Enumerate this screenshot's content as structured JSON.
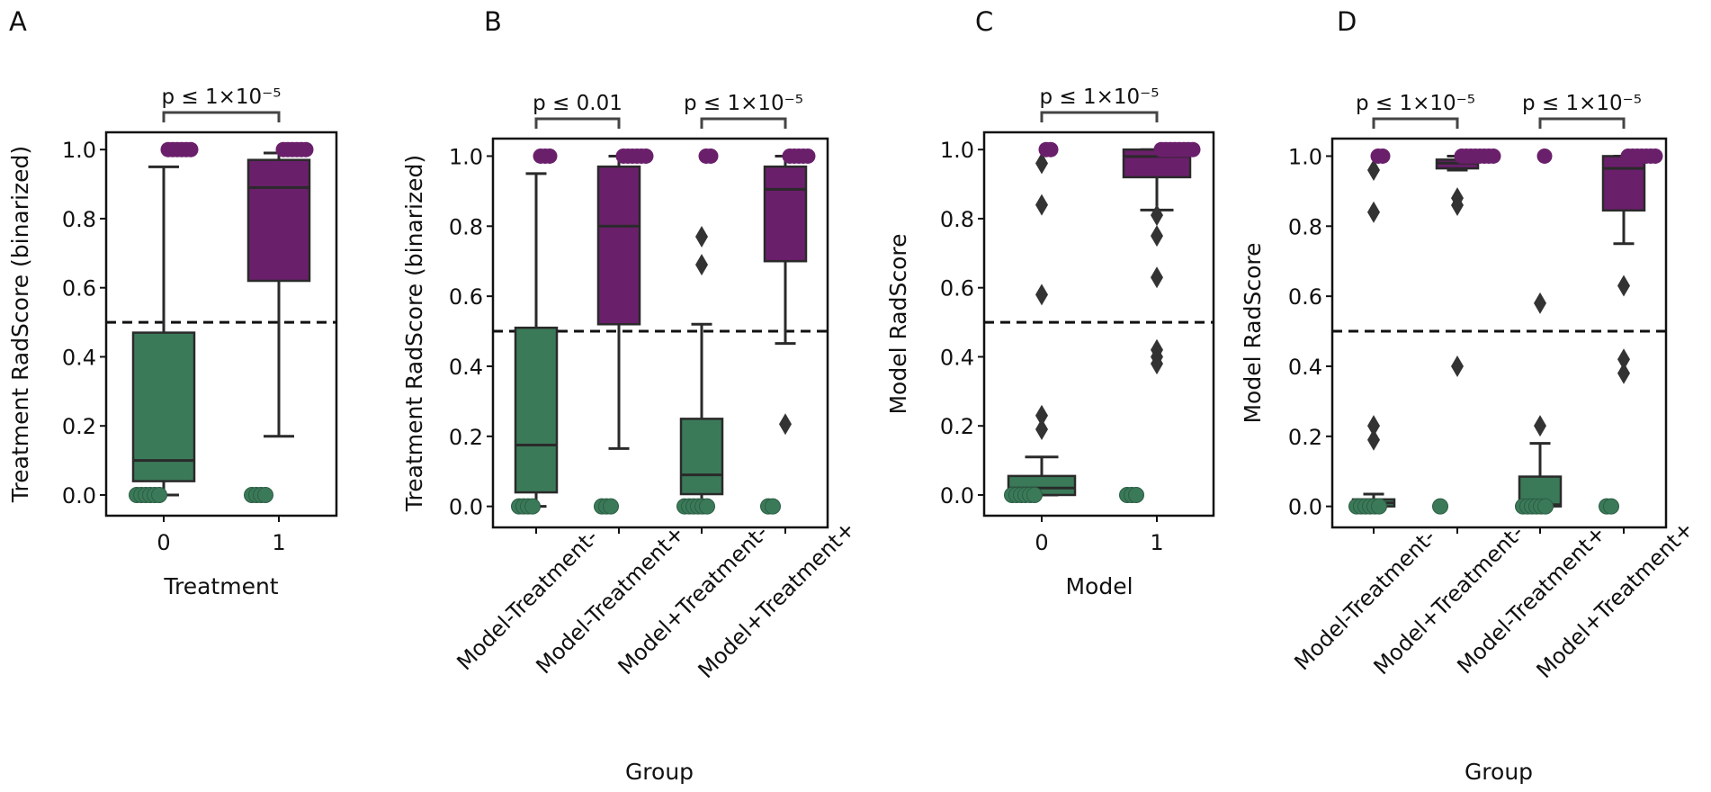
{
  "colors": {
    "green": "#3b7a59",
    "purple": "#6a1f6b",
    "line": "#2a2a2a",
    "diamond": "#333333"
  },
  "chart_data": [
    {
      "type": "box",
      "panel": "A",
      "xlabel": "Treatment",
      "ylabel": "Treatment RadScore (binarized)",
      "ylim": [
        -0.06,
        1.05
      ],
      "yticks": [
        "0.0",
        "0.2",
        "0.4",
        "0.6",
        "0.8",
        "1.0"
      ],
      "threshold": 0.5,
      "rotate_labels": false,
      "categories": [
        "0",
        "1"
      ],
      "boxes": [
        {
          "color": "green",
          "q1": 0.04,
          "median": 0.1,
          "q3": 0.47,
          "wlo": 0.0,
          "whi": 0.95,
          "fliers": [],
          "zeros": 6,
          "ones": 6
        },
        {
          "color": "purple",
          "q1": 0.62,
          "median": 0.89,
          "q3": 0.97,
          "wlo": 0.17,
          "whi": 0.99,
          "fliers": [],
          "zeros": 4,
          "ones": 6
        }
      ],
      "brackets": [
        {
          "from": 0,
          "to": 1,
          "text": "p ≤ 1×10⁻⁵"
        }
      ]
    },
    {
      "type": "box",
      "panel": "B",
      "xlabel": "Group",
      "ylabel": "Treatment RadScore (binarized)",
      "ylim": [
        -0.06,
        1.05
      ],
      "yticks": [
        "0.0",
        "0.2",
        "0.4",
        "0.6",
        "0.8",
        "1.0"
      ],
      "threshold": 0.5,
      "rotate_labels": true,
      "categories": [
        "Model-Treatment-",
        "Model-Treatment+",
        "Model+Treatment-",
        "Model+Treatment+"
      ],
      "boxes": [
        {
          "color": "green",
          "q1": 0.04,
          "median": 0.175,
          "q3": 0.51,
          "wlo": 0.0,
          "whi": 0.95,
          "fliers": [],
          "zeros": 4,
          "ones": 3
        },
        {
          "color": "purple",
          "q1": 0.52,
          "median": 0.8,
          "q3": 0.97,
          "wlo": 0.165,
          "whi": 1.0,
          "fliers": [],
          "zeros": 3,
          "ones": 6
        },
        {
          "color": "green",
          "q1": 0.035,
          "median": 0.09,
          "q3": 0.25,
          "wlo": 0.01,
          "whi": 0.52,
          "fliers": [
            0.69,
            0.77
          ],
          "zeros": 6,
          "ones": 2
        },
        {
          "color": "purple",
          "q1": 0.7,
          "median": 0.905,
          "q3": 0.97,
          "wlo": 0.465,
          "whi": 1.0,
          "fliers": [
            0.235
          ],
          "zeros": 2,
          "ones": 5
        }
      ],
      "brackets": [
        {
          "from": 0,
          "to": 1,
          "text": "p ≤ 0.01"
        },
        {
          "from": 2,
          "to": 3,
          "text": "p ≤ 1×10⁻⁵"
        }
      ]
    },
    {
      "type": "box",
      "panel": "C",
      "xlabel": "Model",
      "ylabel": "Model RadScore",
      "ylim": [
        -0.06,
        1.05
      ],
      "yticks": [
        "0.0",
        "0.2",
        "0.4",
        "0.6",
        "0.8",
        "1.0"
      ],
      "threshold": 0.5,
      "rotate_labels": false,
      "categories": [
        "0",
        "1"
      ],
      "boxes": [
        {
          "color": "green",
          "q1": 0.0,
          "median": 0.02,
          "q3": 0.055,
          "wlo": 0.0,
          "whi": 0.11,
          "fliers": [
            0.19,
            0.23,
            0.58,
            0.84,
            0.96
          ],
          "zeros": 6,
          "ones": 2
        },
        {
          "color": "purple",
          "q1": 0.92,
          "median": 0.98,
          "q3": 1.0,
          "wlo": 0.825,
          "whi": 1.0,
          "fliers": [
            0.38,
            0.4,
            0.42,
            0.63,
            0.75,
            0.81
          ],
          "zeros": 3,
          "ones": 8
        }
      ],
      "brackets": [
        {
          "from": 0,
          "to": 1,
          "text": "p ≤  1×10⁻⁵"
        }
      ]
    },
    {
      "type": "box",
      "panel": "D",
      "xlabel": "Group",
      "ylabel": "Model RadScore",
      "ylim": [
        -0.06,
        1.05
      ],
      "yticks": [
        "0.0",
        "0.2",
        "0.4",
        "0.6",
        "0.8",
        "1.0"
      ],
      "threshold": 0.5,
      "rotate_labels": true,
      "categories": [
        "Model-Treatment-",
        "Model+Treatment-",
        "Model-Treatment+",
        "Model+Treatment+"
      ],
      "boxes": [
        {
          "color": "green",
          "q1": 0.0,
          "median": 0.01,
          "q3": 0.02,
          "wlo": 0.0,
          "whi": 0.035,
          "fliers": [
            0.19,
            0.23,
            0.84,
            0.96
          ],
          "zeros": 6,
          "ones": 2
        },
        {
          "color": "purple",
          "q1": 0.965,
          "median": 0.98,
          "q3": 0.99,
          "wlo": 0.96,
          "whi": 1.0,
          "fliers": [
            0.4,
            0.86,
            0.88
          ],
          "zeros": 1,
          "ones": 8
        },
        {
          "color": "green",
          "q1": 0.0,
          "median": 0.005,
          "q3": 0.085,
          "wlo": 0.0,
          "whi": 0.18,
          "fliers": [
            0.23,
            0.58
          ],
          "zeros": 6,
          "ones": 1
        },
        {
          "color": "purple",
          "q1": 0.845,
          "median": 0.965,
          "q3": 1.0,
          "wlo": 0.75,
          "whi": 1.0,
          "fliers": [
            0.38,
            0.42,
            0.63
          ],
          "zeros": 2,
          "ones": 7
        }
      ],
      "brackets": [
        {
          "from": 0,
          "to": 1,
          "text": "p ≤  1×10⁻⁵"
        },
        {
          "from": 2,
          "to": 3,
          "text": "p ≤  1×10⁻⁵"
        }
      ]
    }
  ]
}
